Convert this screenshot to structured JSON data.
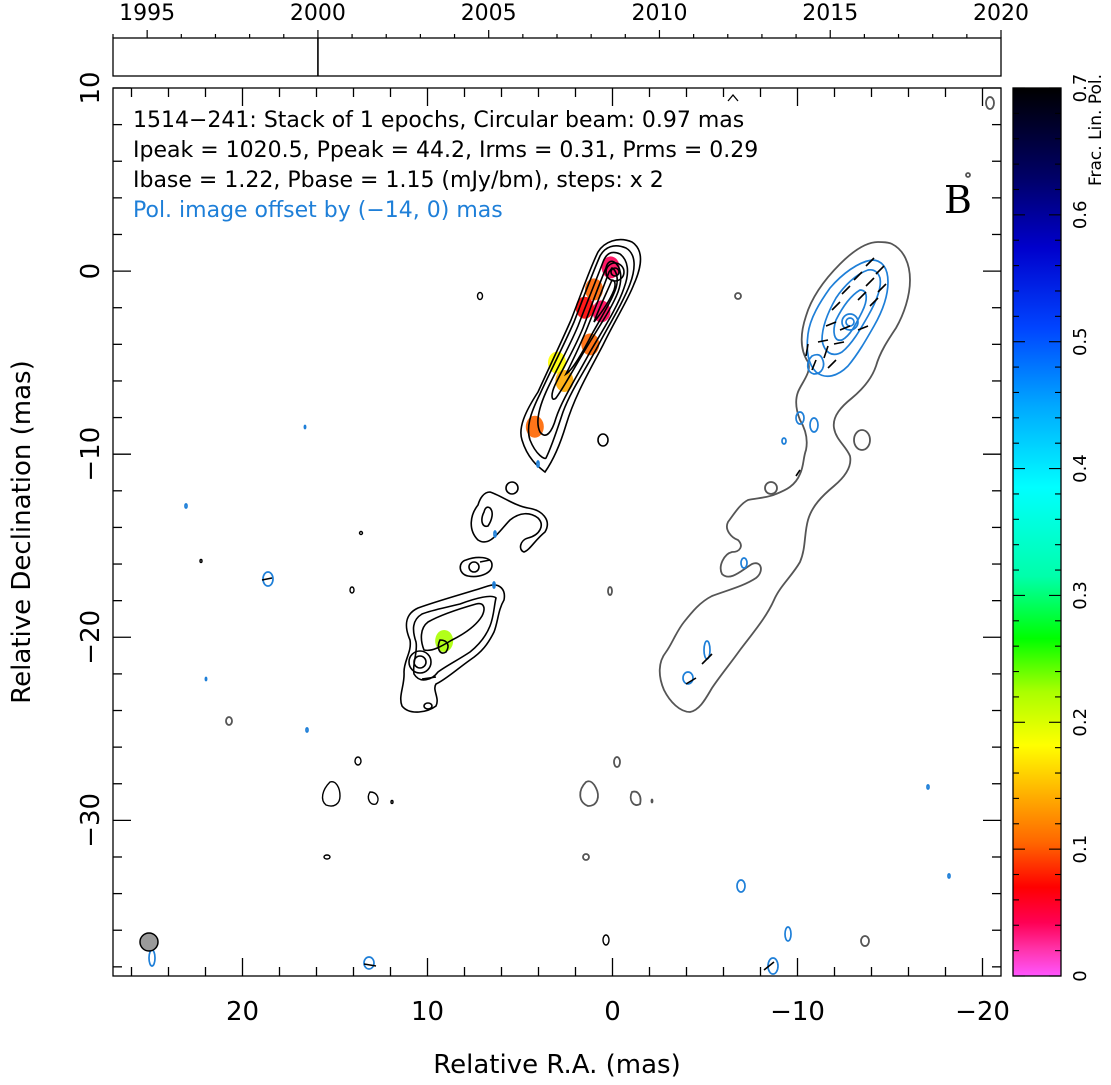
{
  "chart_data": {
    "type": "contour",
    "source_name": "1514−241",
    "header_lines": [
      "1514−241: Stack of 1 epochs, Circular beam: 0.97 mas",
      "Ipeak = 1020.5, Ppeak = 44.2, Irms = 0.31, Prms = 0.29",
      "Ibase = 1.22, Pbase = 1.15 (mJy/bm), steps: x 2"
    ],
    "pol_offset_note": "Pol. image offset by (−14, 0) mas",
    "panel_letter": "B",
    "xlabel": "Relative R.A. (mas)",
    "ylabel": "Relative Declination (mas)",
    "xlim": [
      27,
      -21
    ],
    "ylim": [
      -38.5,
      10
    ],
    "x_ticks": [
      "20",
      "10",
      "0",
      "−10",
      "−20"
    ],
    "x_tick_values": [
      20,
      10,
      0,
      -10,
      -20
    ],
    "y_ticks": [
      "10",
      "0",
      "−10",
      "−20",
      "−30"
    ],
    "y_tick_values": [
      10,
      0,
      -10,
      -20,
      -30
    ],
    "timeline": {
      "years": [
        "1995",
        "2000",
        "2005",
        "2010",
        "2015",
        "2020"
      ],
      "year_values": [
        1995,
        2000,
        2005,
        2010,
        2015,
        2020
      ],
      "range": [
        1994,
        2020
      ],
      "epochs": [
        2000
      ]
    },
    "colorbar": {
      "label": "Frac. Lin. Pol.",
      "range": [
        0,
        0.7
      ],
      "ticks": [
        "0",
        "0.1",
        "0.2",
        "0.3",
        "0.4",
        "0.5",
        "0.6",
        "0.7"
      ],
      "tick_values": [
        0,
        0.1,
        0.2,
        0.3,
        0.4,
        0.5,
        0.6,
        0.7
      ]
    },
    "beam_mas": 0.97,
    "fractional_pol_patches": [
      {
        "x": 0.1,
        "y": 0.2,
        "value": 0.02
      },
      {
        "x": 0.6,
        "y": -2.2,
        "value": 0.05
      },
      {
        "x": 1.5,
        "y": -2.0,
        "value": 0.08
      },
      {
        "x": 1.2,
        "y": -4.0,
        "value": 0.12
      },
      {
        "x": 3.0,
        "y": -5.0,
        "value": 0.18
      },
      {
        "x": 2.6,
        "y": -6.0,
        "value": 0.14
      },
      {
        "x": 1.0,
        "y": -1.0,
        "value": 0.1
      },
      {
        "x": 4.2,
        "y": -8.5,
        "value": 0.12
      },
      {
        "x": 9.1,
        "y": -20.2,
        "value": 0.25
      }
    ]
  },
  "colors": {
    "total_intensity_contours": "#000000",
    "offset_intensity_contours": "#555555",
    "pol_contours": "#1e7fd8",
    "beam": "#9a9a9a"
  }
}
